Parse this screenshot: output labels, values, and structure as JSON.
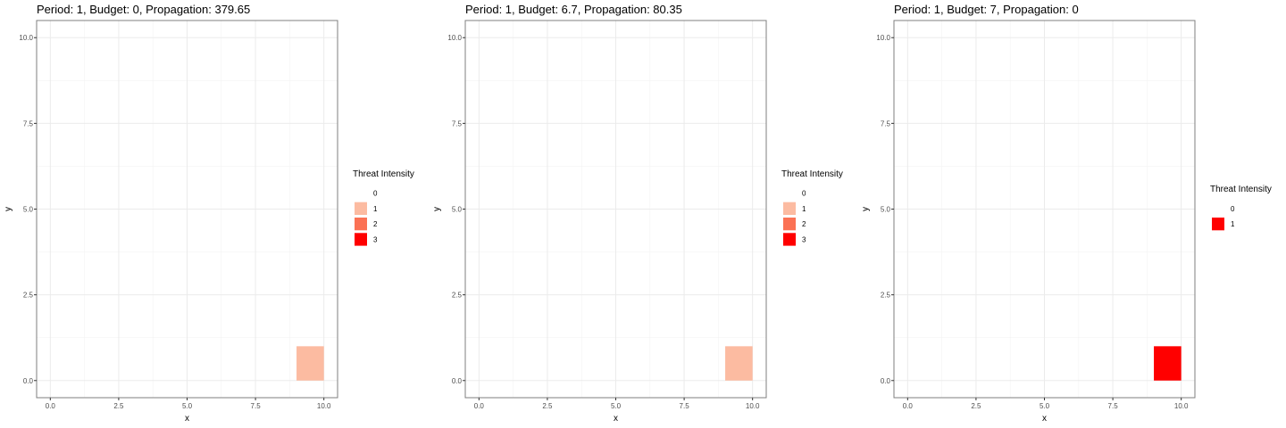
{
  "chart_data": [
    {
      "type": "heatmap",
      "title": "Period: 1, Budget: 0, Propagation: 379.65",
      "xlabel": "x",
      "ylabel": "y",
      "xlim": [
        -0.5,
        10.5
      ],
      "ylim": [
        -0.5,
        10.5
      ],
      "x_ticks": [
        0.0,
        2.5,
        5.0,
        7.5,
        10.0
      ],
      "y_ticks": [
        0.0,
        2.5,
        5.0,
        7.5,
        10.0
      ],
      "x_tick_labels": [
        "0.0",
        "2.5",
        "5.0",
        "7.5",
        "10.0"
      ],
      "y_tick_labels": [
        "0.0",
        "2.5",
        "5.0",
        "7.5",
        "10.0"
      ],
      "grid": true,
      "legend": {
        "title": "Threat Intensity",
        "placement": "right",
        "entries": [
          {
            "label": "0",
            "color": "#ffffff"
          },
          {
            "label": "1",
            "color": "#fcbba1"
          },
          {
            "label": "2",
            "color": "#fb7154"
          },
          {
            "label": "3",
            "color": "#ff0000"
          }
        ]
      },
      "cells": [
        {
          "x": 9.5,
          "y": 0.5,
          "value": 1
        }
      ]
    },
    {
      "type": "heatmap",
      "title": "Period: 1, Budget: 6.7, Propagation: 80.35",
      "xlabel": "x",
      "ylabel": "y",
      "xlim": [
        -0.5,
        10.5
      ],
      "ylim": [
        -0.5,
        10.5
      ],
      "x_ticks": [
        0.0,
        2.5,
        5.0,
        7.5,
        10.0
      ],
      "y_ticks": [
        0.0,
        2.5,
        5.0,
        7.5,
        10.0
      ],
      "x_tick_labels": [
        "0.0",
        "2.5",
        "5.0",
        "7.5",
        "10.0"
      ],
      "y_tick_labels": [
        "0.0",
        "2.5",
        "5.0",
        "7.5",
        "10.0"
      ],
      "grid": true,
      "legend": {
        "title": "Threat Intensity",
        "placement": "right",
        "entries": [
          {
            "label": "0",
            "color": "#ffffff"
          },
          {
            "label": "1",
            "color": "#fcbba1"
          },
          {
            "label": "2",
            "color": "#fb7154"
          },
          {
            "label": "3",
            "color": "#ff0000"
          }
        ]
      },
      "cells": [
        {
          "x": 9.5,
          "y": 0.5,
          "value": 1
        }
      ]
    },
    {
      "type": "heatmap",
      "title": "Period: 1, Budget: 7, Propagation: 0",
      "xlabel": "x",
      "ylabel": "y",
      "xlim": [
        -0.5,
        10.5
      ],
      "ylim": [
        -0.5,
        10.5
      ],
      "x_ticks": [
        0.0,
        2.5,
        5.0,
        7.5,
        10.0
      ],
      "y_ticks": [
        0.0,
        2.5,
        5.0,
        7.5,
        10.0
      ],
      "x_tick_labels": [
        "0.0",
        "2.5",
        "5.0",
        "7.5",
        "10.0"
      ],
      "y_tick_labels": [
        "0.0",
        "2.5",
        "5.0",
        "7.5",
        "10.0"
      ],
      "grid": true,
      "legend": {
        "title": "Threat Intensity",
        "placement": "right",
        "entries": [
          {
            "label": "0",
            "color": "#ffffff"
          },
          {
            "label": "1",
            "color": "#ff0000"
          }
        ]
      },
      "cells": [
        {
          "x": 9.5,
          "y": 0.5,
          "value": 1
        }
      ]
    }
  ]
}
